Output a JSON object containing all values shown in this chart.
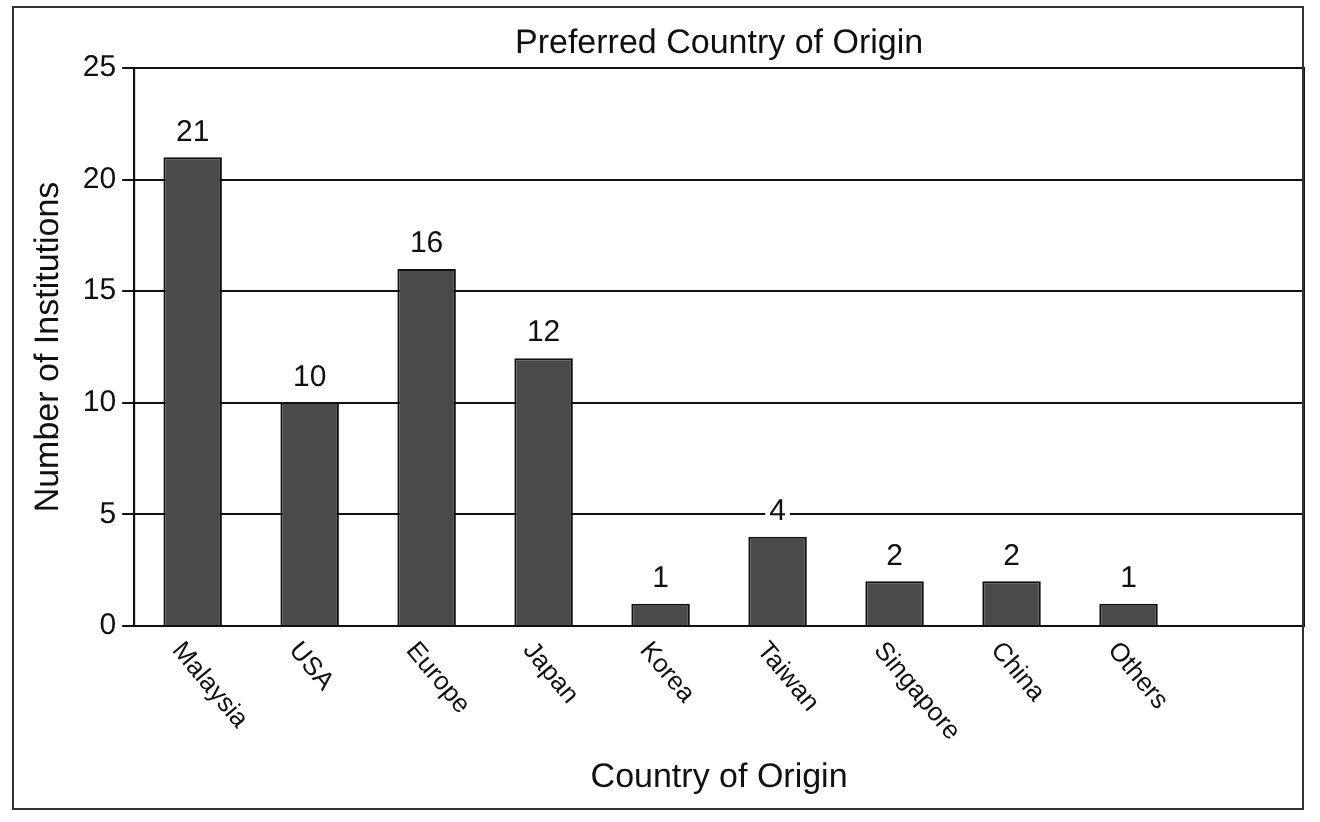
{
  "chart_data": {
    "type": "bar",
    "title": "Preferred Country of Origin",
    "xlabel": "Country of Origin",
    "ylabel": "Number of Institutions",
    "categories": [
      "Malaysia",
      "USA",
      "Europe",
      "Japan",
      "Korea",
      "Taiwan",
      "Singapore",
      "China",
      "Others",
      null
    ],
    "values": [
      21,
      10,
      16,
      12,
      1,
      4,
      2,
      2,
      1,
      null
    ],
    "color": "#4a4a4a",
    "ylim": [
      0,
      25
    ],
    "yticks": [
      0,
      5,
      10,
      15,
      20,
      25
    ],
    "grid": "y",
    "legend": false,
    "data_labels": true
  }
}
